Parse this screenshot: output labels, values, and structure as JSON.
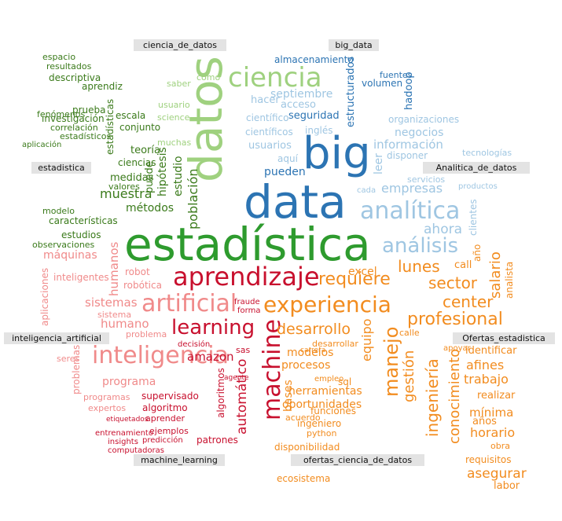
{
  "labels": {
    "ciencia_de_datos": "ciencia_de_datos",
    "big_data": "big_data",
    "estadistica": "estadistica",
    "analitica_de_datos": "Analitica_de_datos",
    "inteligencia_artificial": "inteligencia_artificial",
    "ofertas_estadistica": "Ofertas_estadistica",
    "machine_learning": "machine_learning",
    "ofertas_ciencia_de_datos": "ofertas_ciencia_de_datos"
  },
  "colors": {
    "darkgreen": "#3a7a1a",
    "green": "#2e9b2e",
    "lightgreen": "#9fd17f",
    "blue": "#2c74b3",
    "lightblue": "#9fc6e2",
    "red": "#c8102e",
    "pink": "#f08a8a",
    "orange": "#f28c1f"
  },
  "words": [
    {
      "t": "estadística",
      "c": "green"
    },
    {
      "t": "data",
      "c": "blue"
    },
    {
      "t": "big",
      "c": "blue"
    },
    {
      "t": "datos",
      "c": "lightgreen"
    },
    {
      "t": "ciencia",
      "c": "lightgreen"
    },
    {
      "t": "aprendizaje",
      "c": "red"
    },
    {
      "t": "inteligencia",
      "c": "pink"
    },
    {
      "t": "artificial",
      "c": "pink"
    },
    {
      "t": "experiencia",
      "c": "orange"
    },
    {
      "t": "analítica",
      "c": "lightblue"
    },
    {
      "t": "learning",
      "c": "red"
    },
    {
      "t": "análisis",
      "c": "lightblue"
    },
    {
      "t": "machine",
      "c": "red"
    },
    {
      "t": "manejo",
      "c": "orange"
    },
    {
      "t": "profesional",
      "c": "orange"
    },
    {
      "t": "requiere",
      "c": "orange"
    },
    {
      "t": "lunes",
      "c": "orange"
    },
    {
      "t": "center",
      "c": "orange"
    },
    {
      "t": "sector",
      "c": "orange"
    },
    {
      "t": "conocimiento",
      "c": "orange"
    },
    {
      "t": "ingeniería",
      "c": "orange"
    },
    {
      "t": "gestión",
      "c": "orange"
    },
    {
      "t": "salario",
      "c": "orange"
    },
    {
      "t": "desarrollo",
      "c": "orange"
    },
    {
      "t": "asegurar",
      "c": "orange"
    },
    {
      "t": "trabajo",
      "c": "orange"
    },
    {
      "t": "afines",
      "c": "orange"
    },
    {
      "t": "horario",
      "c": "orange"
    },
    {
      "t": "mínima",
      "c": "orange"
    },
    {
      "t": "amazon",
      "c": "red"
    },
    {
      "t": "automático",
      "c": "red"
    },
    {
      "t": "humano",
      "c": "pink"
    },
    {
      "t": "programa",
      "c": "pink"
    },
    {
      "t": "humanos",
      "c": "pink"
    },
    {
      "t": "sistemas",
      "c": "pink"
    },
    {
      "t": "máquinas",
      "c": "pink"
    },
    {
      "t": "población",
      "c": "darkgreen"
    },
    {
      "t": "muestra",
      "c": "darkgreen"
    },
    {
      "t": "métodos",
      "c": "darkgreen"
    },
    {
      "t": "características",
      "c": "darkgreen"
    },
    {
      "t": "septiembre",
      "c": "lightblue"
    },
    {
      "t": "acceso",
      "c": "lightblue"
    },
    {
      "t": "información",
      "c": "lightblue"
    },
    {
      "t": "empresas",
      "c": "lightblue"
    },
    {
      "t": "ahora",
      "c": "lightblue"
    },
    {
      "t": "pueden",
      "c": "blue"
    },
    {
      "t": "usuarios",
      "c": "lightblue"
    },
    {
      "t": "negocios",
      "c": "lightblue"
    },
    {
      "t": "estructurados",
      "c": "blue"
    },
    {
      "t": "almacenamiento",
      "c": "blue"
    },
    {
      "t": "hadoop",
      "c": "blue"
    },
    {
      "t": "volumen",
      "c": "blue"
    },
    {
      "t": "fuentes",
      "c": "blue"
    },
    {
      "t": "seguridad",
      "c": "blue"
    },
    {
      "t": "hacer",
      "c": "lightblue"
    },
    {
      "t": "científico",
      "c": "lightblue"
    },
    {
      "t": "científicos",
      "c": "lightblue"
    },
    {
      "t": "aquí",
      "c": "lightblue"
    },
    {
      "t": "inglés",
      "c": "lightblue"
    },
    {
      "t": "organizaciones",
      "c": "lightblue"
    },
    {
      "t": "leer",
      "c": "lightblue"
    },
    {
      "t": "clientes",
      "c": "lightblue"
    },
    {
      "t": "tecnologías",
      "c": "lightblue"
    },
    {
      "t": "servicios",
      "c": "lightblue"
    },
    {
      "t": "productos",
      "c": "lightblue"
    },
    {
      "t": "disponer",
      "c": "lightblue"
    },
    {
      "t": "cada",
      "c": "lightblue"
    },
    {
      "t": "estudio",
      "c": "darkgreen"
    },
    {
      "t": "hipótesis",
      "c": "darkgreen"
    },
    {
      "t": "teoría",
      "c": "darkgreen"
    },
    {
      "t": "ciencias",
      "c": "darkgreen"
    },
    {
      "t": "medidas",
      "c": "darkgreen"
    },
    {
      "t": "estadísticas",
      "c": "darkgreen"
    },
    {
      "t": "conjunto",
      "c": "darkgreen"
    },
    {
      "t": "investigación",
      "c": "darkgreen"
    },
    {
      "t": "descriptiva",
      "c": "darkgreen"
    },
    {
      "t": "espacio",
      "c": "darkgreen"
    },
    {
      "t": "resultados",
      "c": "darkgreen"
    },
    {
      "t": "correlación",
      "c": "darkgreen"
    },
    {
      "t": "fenómenos",
      "c": "darkgreen"
    },
    {
      "t": "estudios",
      "c": "darkgreen"
    },
    {
      "t": "observaciones",
      "c": "darkgreen"
    },
    {
      "t": "prueba",
      "c": "darkgreen"
    },
    {
      "t": "aprendiz",
      "c": "darkgreen"
    },
    {
      "t": "modelo",
      "c": "darkgreen"
    },
    {
      "t": "aplicación",
      "c": "darkgreen"
    },
    {
      "t": "estadísticos",
      "c": "darkgreen"
    },
    {
      "t": "valores",
      "c": "darkgreen"
    },
    {
      "t": "muchas",
      "c": "lightgreen"
    },
    {
      "t": "puede",
      "c": "darkgreen"
    },
    {
      "t": "escala",
      "c": "darkgreen"
    },
    {
      "t": "science",
      "c": "lightgreen"
    },
    {
      "t": "usuario",
      "c": "lightgreen"
    },
    {
      "t": "saber",
      "c": "lightgreen"
    },
    {
      "t": "cómo",
      "c": "lightgreen"
    },
    {
      "t": "robótica",
      "c": "pink"
    },
    {
      "t": "robot",
      "c": "pink"
    },
    {
      "t": "inteligentes",
      "c": "pink"
    },
    {
      "t": "sistema",
      "c": "pink"
    },
    {
      "t": "problema",
      "c": "pink"
    },
    {
      "t": "aplicaciones",
      "c": "pink"
    },
    {
      "t": "problemas",
      "c": "pink"
    },
    {
      "t": "seres",
      "c": "pink"
    },
    {
      "t": "supervisado",
      "c": "red"
    },
    {
      "t": "algoritmo",
      "c": "red"
    },
    {
      "t": "aprender",
      "c": "red"
    },
    {
      "t": "ejemplos",
      "c": "red"
    },
    {
      "t": "patrones",
      "c": "red"
    },
    {
      "t": "entrenamiento",
      "c": "red"
    },
    {
      "t": "predicción",
      "c": "red"
    },
    {
      "t": "algoritmos",
      "c": "red"
    },
    {
      "t": "expertos",
      "c": "pink"
    },
    {
      "t": "programas",
      "c": "pink"
    },
    {
      "t": "computadoras",
      "c": "red"
    },
    {
      "t": "insights",
      "c": "red"
    },
    {
      "t": "etiquetados",
      "c": "red"
    },
    {
      "t": "fraude",
      "c": "red"
    },
    {
      "t": "forma",
      "c": "red"
    },
    {
      "t": "decisión",
      "c": "red"
    },
    {
      "t": "modelos",
      "c": "orange"
    },
    {
      "t": "procesos",
      "c": "orange"
    },
    {
      "t": "herramientas",
      "c": "orange"
    },
    {
      "t": "oportunidades",
      "c": "orange"
    },
    {
      "t": "disponibilidad",
      "c": "orange"
    },
    {
      "t": "bases",
      "c": "orange"
    },
    {
      "t": "excel",
      "c": "orange"
    },
    {
      "t": "call",
      "c": "orange"
    },
    {
      "t": "equipo",
      "c": "orange"
    },
    {
      "t": "identificar",
      "c": "orange"
    },
    {
      "t": "realizar",
      "c": "orange"
    },
    {
      "t": "años",
      "c": "orange"
    },
    {
      "t": "requisitos",
      "c": "orange"
    },
    {
      "t": "labor",
      "c": "orange"
    },
    {
      "t": "funciones",
      "c": "orange"
    },
    {
      "t": "ingeniero",
      "c": "orange"
    },
    {
      "t": "ecosistema",
      "c": "orange"
    },
    {
      "t": "python",
      "c": "orange"
    },
    {
      "t": "acuerdo",
      "c": "orange"
    },
    {
      "t": "analista",
      "c": "orange"
    },
    {
      "t": "año",
      "c": "orange"
    },
    {
      "t": "sql",
      "c": "orange"
    },
    {
      "t": "empleo",
      "c": "orange"
    },
    {
      "t": "calle",
      "c": "orange"
    },
    {
      "t": "apoyar",
      "c": "orange"
    },
    {
      "t": "obra",
      "c": "orange"
    },
    {
      "t": "desarrollar",
      "c": "orange"
    },
    {
      "t": "carrera",
      "c": "orange"
    },
    {
      "t": "sas",
      "c": "red"
    },
    {
      "t": "agente",
      "c": "red"
    }
  ]
}
